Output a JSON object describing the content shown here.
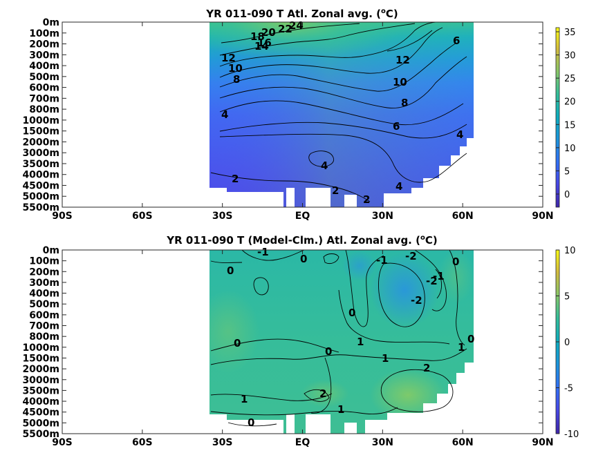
{
  "chart_data": [
    {
      "type": "heatmap",
      "title": "YR 011-090 T Atl. Zonal avg. (",
      "title_sup": "o",
      "title_end": "C)",
      "x_ticks": [
        "90S",
        "60S",
        "30S",
        "EQ",
        "30N",
        "60N",
        "90N"
      ],
      "x_range": [
        -90,
        90
      ],
      "y_ticks": [
        "0m",
        "100m",
        "200m",
        "300m",
        "400m",
        "500m",
        "600m",
        "700m",
        "800m",
        "1000m",
        "1500m",
        "2000m",
        "3000m",
        "3500m",
        "4000m",
        "4500m",
        "5000m",
        "5500m"
      ],
      "colorbar": {
        "ticks": [
          "35",
          "30",
          "25",
          "20",
          "15",
          "10",
          "5",
          "0"
        ],
        "range": [
          -3.5,
          36
        ]
      },
      "contour_labels": [
        "24",
        "22",
        "20",
        "18",
        "16",
        "14",
        "12",
        "10",
        "8",
        "6",
        "4",
        "2",
        "12",
        "10",
        "8",
        "6",
        "4",
        "4",
        "2",
        "2",
        "4",
        "6"
      ],
      "data_extent": {
        "lat_min": -35,
        "lat_max": 65
      }
    },
    {
      "type": "heatmap",
      "title": "YR 011-090 T (Model-Clm.) Atl. Zonal avg. (",
      "title_sup": "o",
      "title_end": "C)",
      "x_ticks": [
        "90S",
        "60S",
        "30S",
        "EQ",
        "30N",
        "60N",
        "90N"
      ],
      "x_range": [
        -90,
        90
      ],
      "y_ticks": [
        "0m",
        "100m",
        "200m",
        "300m",
        "400m",
        "500m",
        "600m",
        "700m",
        "800m",
        "1000m",
        "1500m",
        "2000m",
        "3000m",
        "3500m",
        "4000m",
        "4500m",
        "5000m",
        "5500m"
      ],
      "colorbar": {
        "ticks": [
          "10",
          "5",
          "0",
          "-5",
          "-10"
        ],
        "range": [
          -10,
          10
        ]
      },
      "contour_labels": [
        "-1",
        "0",
        "0",
        "-1",
        "-2",
        "0",
        "-2",
        "-1",
        "-2",
        "0",
        "0",
        "1",
        "0",
        "0",
        "1",
        "1",
        "2",
        "1",
        "2",
        "1",
        "0",
        "0"
      ],
      "data_extent": {
        "lat_min": -35,
        "lat_max": 65
      }
    }
  ]
}
